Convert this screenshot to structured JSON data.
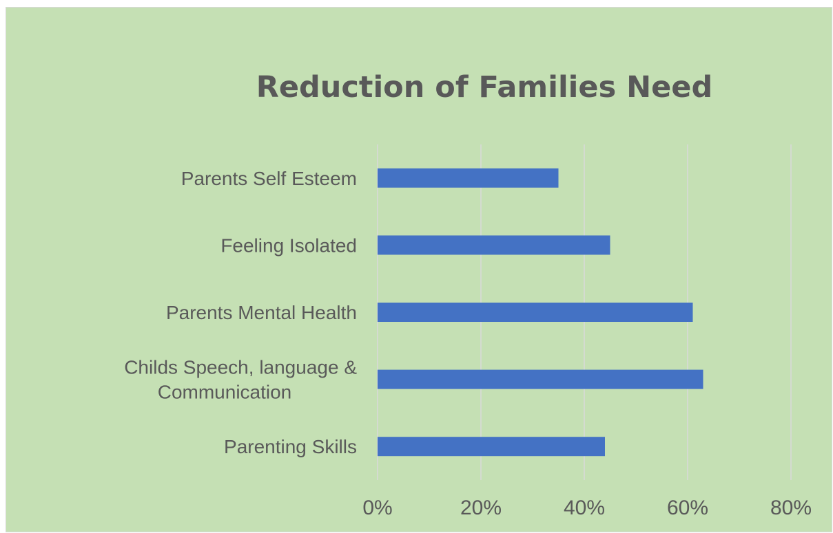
{
  "chart_data": {
    "type": "bar",
    "orientation": "horizontal",
    "title": "Reduction of Families Need",
    "categories": [
      [
        "Parenting Skills"
      ],
      [
        "Childs Speech, language &",
        "Communication"
      ],
      [
        "Parents Mental Health"
      ],
      [
        "Feeling Isolated"
      ],
      [
        "Parents Self Esteem"
      ]
    ],
    "values": [
      0.44,
      0.63,
      0.61,
      0.45,
      0.35
    ],
    "xlim": [
      0,
      0.8
    ],
    "xticks": [
      0,
      0.2,
      0.4,
      0.6,
      0.8
    ],
    "xtick_labels": [
      "0%",
      "20%",
      "40%",
      "60%",
      "80%"
    ],
    "grid": true,
    "legend": false,
    "bar_color": "#4472c4",
    "background_color": "#c5e0b4",
    "gridline_color": "#d9d9d9",
    "text_color": "#595959"
  }
}
